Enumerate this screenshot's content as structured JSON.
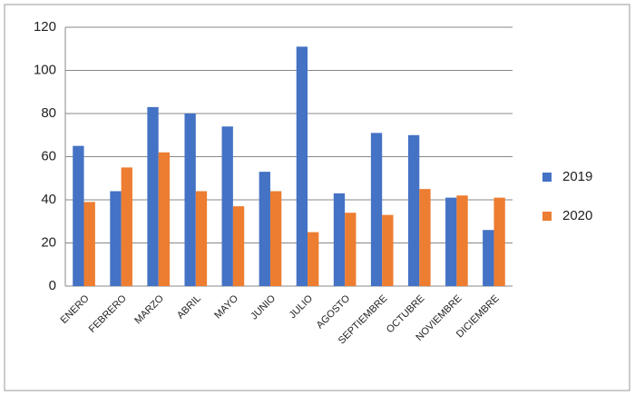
{
  "chart_data": {
    "type": "bar",
    "categories": [
      "ENERO",
      "FEBRERO",
      "MARZO",
      "ABRIL",
      "MAYO",
      "JUNIO",
      "JULIO",
      "AGOSTO",
      "SEPTIEMBRE",
      "OCTUBRE",
      "NOVIEMBRE",
      "DICIEMBRE"
    ],
    "series": [
      {
        "name": "2019",
        "color": "#4472c4",
        "values": [
          65,
          44,
          83,
          80,
          74,
          53,
          111,
          43,
          71,
          70,
          41,
          26
        ]
      },
      {
        "name": "2020",
        "color": "#ed7d31",
        "values": [
          39,
          55,
          62,
          44,
          37,
          44,
          25,
          34,
          33,
          45,
          42,
          41
        ]
      }
    ],
    "ylim": [
      0,
      120
    ],
    "yticks": [
      0,
      20,
      40,
      60,
      80,
      100,
      120
    ],
    "grid": true,
    "legend": "right"
  }
}
